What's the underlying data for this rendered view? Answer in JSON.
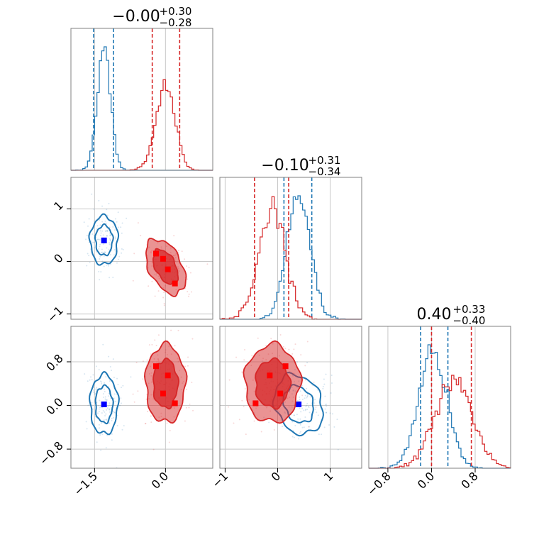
{
  "colors": {
    "blue": "#1f77b4",
    "red": "#d62728",
    "blue_marker": "#0000ff",
    "red_marker": "#ff0000",
    "grid": "#c8c8c8",
    "frame": "#808080"
  },
  "chart_data": {
    "type": "corner",
    "grid": true,
    "parameters": [
      {
        "name": "p0",
        "range": [
          -2.0,
          1.0
        ],
        "ticks": [
          "-1.5",
          "0.0"
        ],
        "tick_values": [
          -1.5,
          0.0
        ]
      },
      {
        "name": "p1",
        "range": [
          -1.1,
          1.6
        ],
        "ticks": [
          "-1",
          "0",
          "1"
        ],
        "tick_values": [
          -1,
          0,
          1
        ]
      },
      {
        "name": "p2",
        "range": [
          -1.15,
          1.45
        ],
        "ticks": [
          "-0.8",
          "0.0",
          "0.8"
        ],
        "tick_values": [
          -0.8,
          0.0,
          0.8
        ]
      }
    ],
    "titles": [
      {
        "median": "−0.00",
        "plus": "+0.30",
        "minus": "−0.28"
      },
      {
        "median": "−0.10",
        "plus": "+0.31",
        "minus": "−0.34"
      },
      {
        "median": "0.40",
        "plus": "+0.33",
        "minus": "−0.40"
      }
    ],
    "series": [
      {
        "color": "blue",
        "filled": false,
        "means": [
          -1.3,
          0.4,
          0.02
        ],
        "sigmas": [
          0.14,
          0.22,
          0.26
        ],
        "correlations": {
          "0-1": 0.0,
          "0-2": 0.0,
          "1-2": -0.2
        },
        "quantiles": [
          [
            -1.52,
            -1.1
          ],
          [
            0.12,
            0.65
          ],
          [
            -0.2,
            0.3
          ]
        ],
        "markers": [
          [
            -1.3,
            0.4,
            0.02
          ]
        ]
      },
      {
        "color": "red",
        "filled": true,
        "means": [
          0.0,
          -0.1,
          0.4
        ],
        "sigmas": [
          0.2,
          0.25,
          0.34
        ],
        "correlations": {
          "0-1": -0.45,
          "0-2": 0.0,
          "1-2": 0.0
        },
        "quantiles": [
          [
            -0.28,
            0.3
          ],
          [
            -0.44,
            0.21
          ],
          [
            0.0,
            0.73
          ]
        ],
        "markers": [
          [
            -0.2,
            0.15,
            0.72
          ],
          [
            -0.05,
            0.05,
            0.22
          ],
          [
            0.05,
            -0.15,
            0.55
          ],
          [
            0.2,
            -0.42,
            0.04
          ]
        ]
      }
    ]
  },
  "labels": {
    "x_ticks": [
      [
        "−1.5",
        "0.0"
      ],
      [
        "−1",
        "0",
        "1"
      ],
      [
        "−0.8",
        "0.0",
        "0.8"
      ]
    ],
    "y_ticks_row1": [
      "−1",
      "0",
      "1"
    ],
    "y_ticks_row2": [
      "−0.8",
      "0.0",
      "0.8"
    ]
  }
}
